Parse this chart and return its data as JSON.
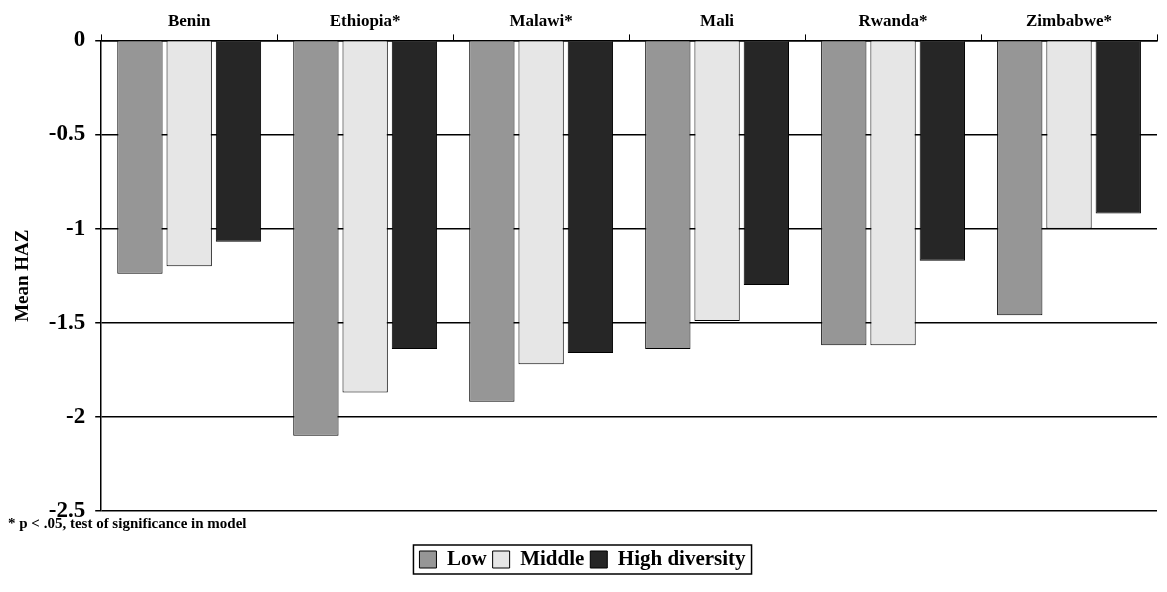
{
  "chart_data": {
    "type": "bar",
    "categories": [
      "Benin",
      "Ethiopia*",
      "Malawi*",
      "Mali",
      "Rwanda*",
      "Zimbabwe*"
    ],
    "series": [
      {
        "name": "Low",
        "color": "#969696",
        "values": [
          -1.24,
          -2.1,
          -1.92,
          -1.64,
          -1.62,
          -1.46
        ]
      },
      {
        "name": "Middle",
        "color": "#e6e6e6",
        "values": [
          -1.2,
          -1.87,
          -1.72,
          -1.49,
          -1.62,
          -1.0
        ]
      },
      {
        "name": "High diversity",
        "color": "#262626",
        "values": [
          -1.07,
          -1.64,
          -1.66,
          -1.3,
          -1.17,
          -0.92
        ]
      }
    ],
    "ylabel": "Mean HAZ",
    "ylim": [
      -2.5,
      0
    ],
    "yticks": [
      {
        "value": -2.5,
        "label": "-2.5"
      },
      {
        "value": -2,
        "label": "-2"
      },
      {
        "value": -1.5,
        "label": "-1.5"
      },
      {
        "value": -1,
        "label": "-1"
      },
      {
        "value": -0.5,
        "label": "-0.5"
      },
      {
        "value": 0,
        "label": "0"
      }
    ],
    "grid": "y",
    "legend": "bottom",
    "annotations": [
      "* p < .05, test of significance in model"
    ]
  }
}
